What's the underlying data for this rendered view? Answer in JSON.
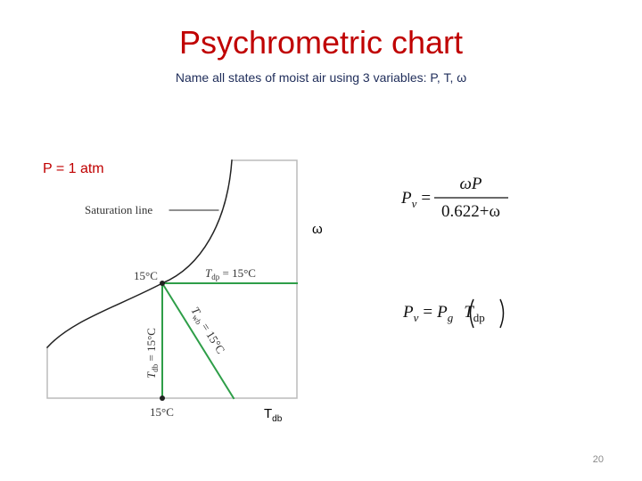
{
  "header": {
    "title": "Psychrometric chart",
    "subtitle": "Name all states of moist air using 3 variables: P, T, ω"
  },
  "pressure_label": "P = 1 atm",
  "diagram": {
    "saturation_label": "Saturation line",
    "dew_point_temp": "15°C",
    "tdp_label": {
      "symbol": "T",
      "sub": "dp",
      "rest": " = 15°C"
    },
    "twb_label": {
      "symbol": "T",
      "sub": "wb",
      "rest": " = 15°C"
    },
    "tdb_label": {
      "symbol": "T",
      "sub": "db",
      "rest": " = 15°C"
    },
    "dry_bulb_temp": "15°C",
    "y_axis": "ω",
    "x_axis": {
      "symbol": "T",
      "sub": "db"
    }
  },
  "equations": [
    {
      "lhs": "P",
      "lhs_sub": "v",
      "eq": "=",
      "numerator": "ωP",
      "denominator": "0.622+ω"
    },
    {
      "lhs": "P",
      "lhs_sub": "v",
      "eq": "=",
      "rhs": "P",
      "rhs_sub": "g",
      "arg": "T",
      "arg_sub": "dp"
    }
  ],
  "page_number": "20"
}
